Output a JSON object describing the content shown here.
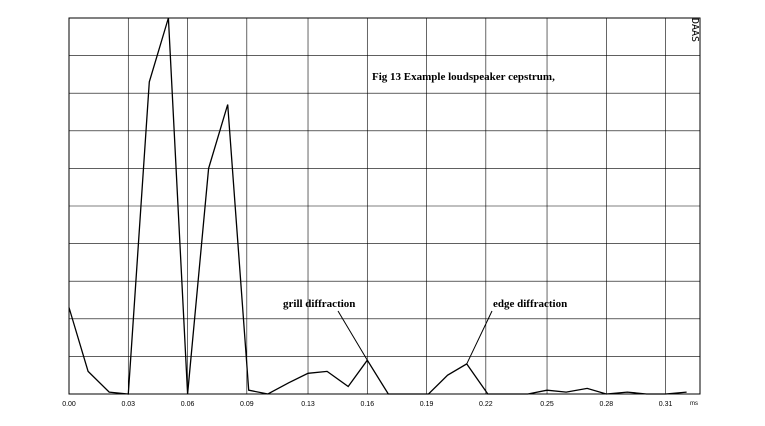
{
  "chart_data": {
    "type": "line",
    "title": "Fig 13  Example loudspeaker cepstrum,",
    "xlabel": "ms",
    "ylabel": "",
    "xlim": [
      0,
      0.33
    ],
    "ylim": [
      0,
      10
    ],
    "grid": true,
    "x_ticks": [
      {
        "value": 0.0,
        "label": "0.00"
      },
      {
        "value": 0.031,
        "label": "0.03"
      },
      {
        "value": 0.062,
        "label": "0.06"
      },
      {
        "value": 0.093,
        "label": "0.09"
      },
      {
        "value": 0.125,
        "label": "0.13"
      },
      {
        "value": 0.156,
        "label": "0.16"
      },
      {
        "value": 0.187,
        "label": "0.19"
      },
      {
        "value": 0.218,
        "label": "0.22"
      },
      {
        "value": 0.25,
        "label": "0.25"
      },
      {
        "value": 0.281,
        "label": "0.28"
      },
      {
        "value": 0.312,
        "label": "0.31"
      }
    ],
    "series": [
      {
        "color": "#000000",
        "x": [
          0.0,
          0.01,
          0.021,
          0.031,
          0.042,
          0.052,
          0.062,
          0.073,
          0.083,
          0.094,
          0.104,
          0.115,
          0.125,
          0.135,
          0.146,
          0.156,
          0.167,
          0.177,
          0.188,
          0.198,
          0.208,
          0.219,
          0.229,
          0.24,
          0.25,
          0.26,
          0.271,
          0.281,
          0.292,
          0.302,
          0.312,
          0.323
        ],
        "y": [
          2.3,
          0.6,
          0.05,
          0.0,
          8.3,
          10.0,
          0.0,
          6.0,
          7.7,
          0.1,
          0.0,
          0.3,
          0.55,
          0.6,
          0.2,
          0.9,
          0.0,
          0.0,
          0.0,
          0.5,
          0.8,
          0.0,
          0.0,
          0.0,
          0.1,
          0.05,
          0.15,
          0.0,
          0.05,
          0.0,
          0.0,
          0.05
        ]
      }
    ],
    "annotations": [
      {
        "text": "grill diffraction",
        "x": 0.156,
        "y": 0.9
      },
      {
        "text": "edge diffraction",
        "x": 0.208,
        "y": 0.8
      }
    ]
  },
  "watermark": "DAAS",
  "colors": {
    "line": "#000000",
    "grid": "#000000",
    "background": "#ffffff"
  }
}
